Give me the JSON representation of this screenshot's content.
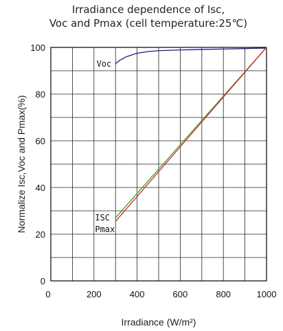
{
  "chart_data": {
    "type": "line",
    "title_line1": "Irradiance dependence of Isc,",
    "title_line2": "Voc and Pmax (cell temperature:25℃)",
    "xlabel": "Irradiance (W/m²)",
    "ylabel": "Normalize Isc,Voc and Pmax(%)",
    "xlim": [
      0,
      1000
    ],
    "ylim": [
      0,
      100
    ],
    "grid": true,
    "x_ticks": [
      "0",
      "200",
      "400",
      "600",
      "800",
      "1000"
    ],
    "y_ticks": [
      "0",
      "20",
      "40",
      "60",
      "80",
      "100"
    ],
    "series": [
      {
        "name": "Voc",
        "color": "#1a1a8c",
        "x": [
          300,
          320,
          350,
          400,
          450,
          500,
          600,
          700,
          800,
          900,
          1000
        ],
        "y": [
          93,
          94.5,
          96,
          97.5,
          98.2,
          98.6,
          98.9,
          99.1,
          99.3,
          99.5,
          99.7
        ]
      },
      {
        "name": "ISC",
        "color": "#22aa33",
        "x": [
          300,
          1000
        ],
        "y": [
          27,
          100
        ]
      },
      {
        "name": "Pmax",
        "color": "#dd2222",
        "x": [
          300,
          1000
        ],
        "y": [
          25.5,
          100
        ]
      }
    ]
  }
}
